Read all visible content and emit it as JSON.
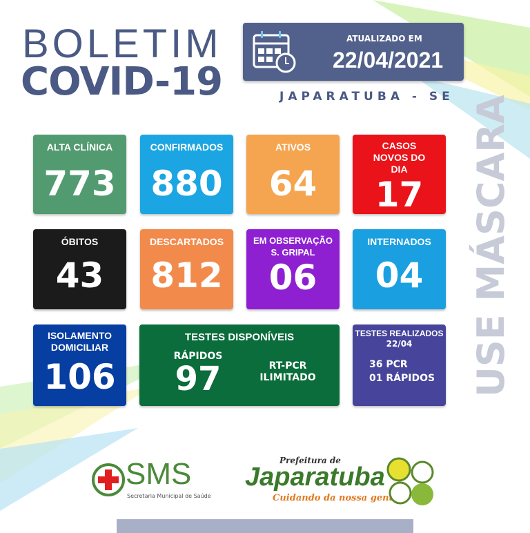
{
  "header": {
    "title_line1": "BOLETIM",
    "title_line2": "COVID-19",
    "updated_label": "ATUALIZADO EM",
    "updated_date": "22/04/2021",
    "location": "JAPARATUBA - SE"
  },
  "cards": [
    {
      "label": "ALTA CLÍNICA",
      "value": "773",
      "color": "#529b70"
    },
    {
      "label": "CONFIRMADOS",
      "value": "880",
      "color": "#1ba6e3"
    },
    {
      "label": "ATIVOS",
      "value": "64",
      "color": "#f5a54f"
    },
    {
      "label": "CASOS NOVOS DO DIA",
      "value": "17",
      "color": "#ea1319"
    },
    {
      "label": "ÓBITOS",
      "value": "43",
      "color": "#1b1b1b"
    },
    {
      "label": "DESCARTADOS",
      "value": "812",
      "color": "#f28a4c"
    },
    {
      "label": "EM OBSERVAÇÃO S. GRIPAL",
      "value": "06",
      "color": "#8e20d2"
    },
    {
      "label": "INTERNADOS",
      "value": "04",
      "color": "#1aa0e0"
    },
    {
      "label": "ISOLAMENTO DOMICILIAR",
      "value": "106",
      "color": "#073ea2"
    }
  ],
  "tests_available": {
    "title": "TESTES DISPONÍVEIS",
    "rapid_label": "RÁPIDOS",
    "rapid_value": "97",
    "rtpcr_label": "RT-PCR",
    "rtpcr_value": "ILIMITADO",
    "color": "#0a6d3b"
  },
  "tests_done": {
    "title": "TESTES REALIZADOS",
    "date": "22/04",
    "pcr": "36  PCR",
    "rapid": "01 RÁPIDOS",
    "color": "#46449b"
  },
  "side_text": "USE MÁSCARA",
  "logos": {
    "sms": "SMS",
    "sms_sub": "Secretaria Municipal de Saúde",
    "pref_top": "Prefeitura de",
    "pref_name": "Japaratuba",
    "pref_slogan": "Cuidando da nossa gente"
  }
}
